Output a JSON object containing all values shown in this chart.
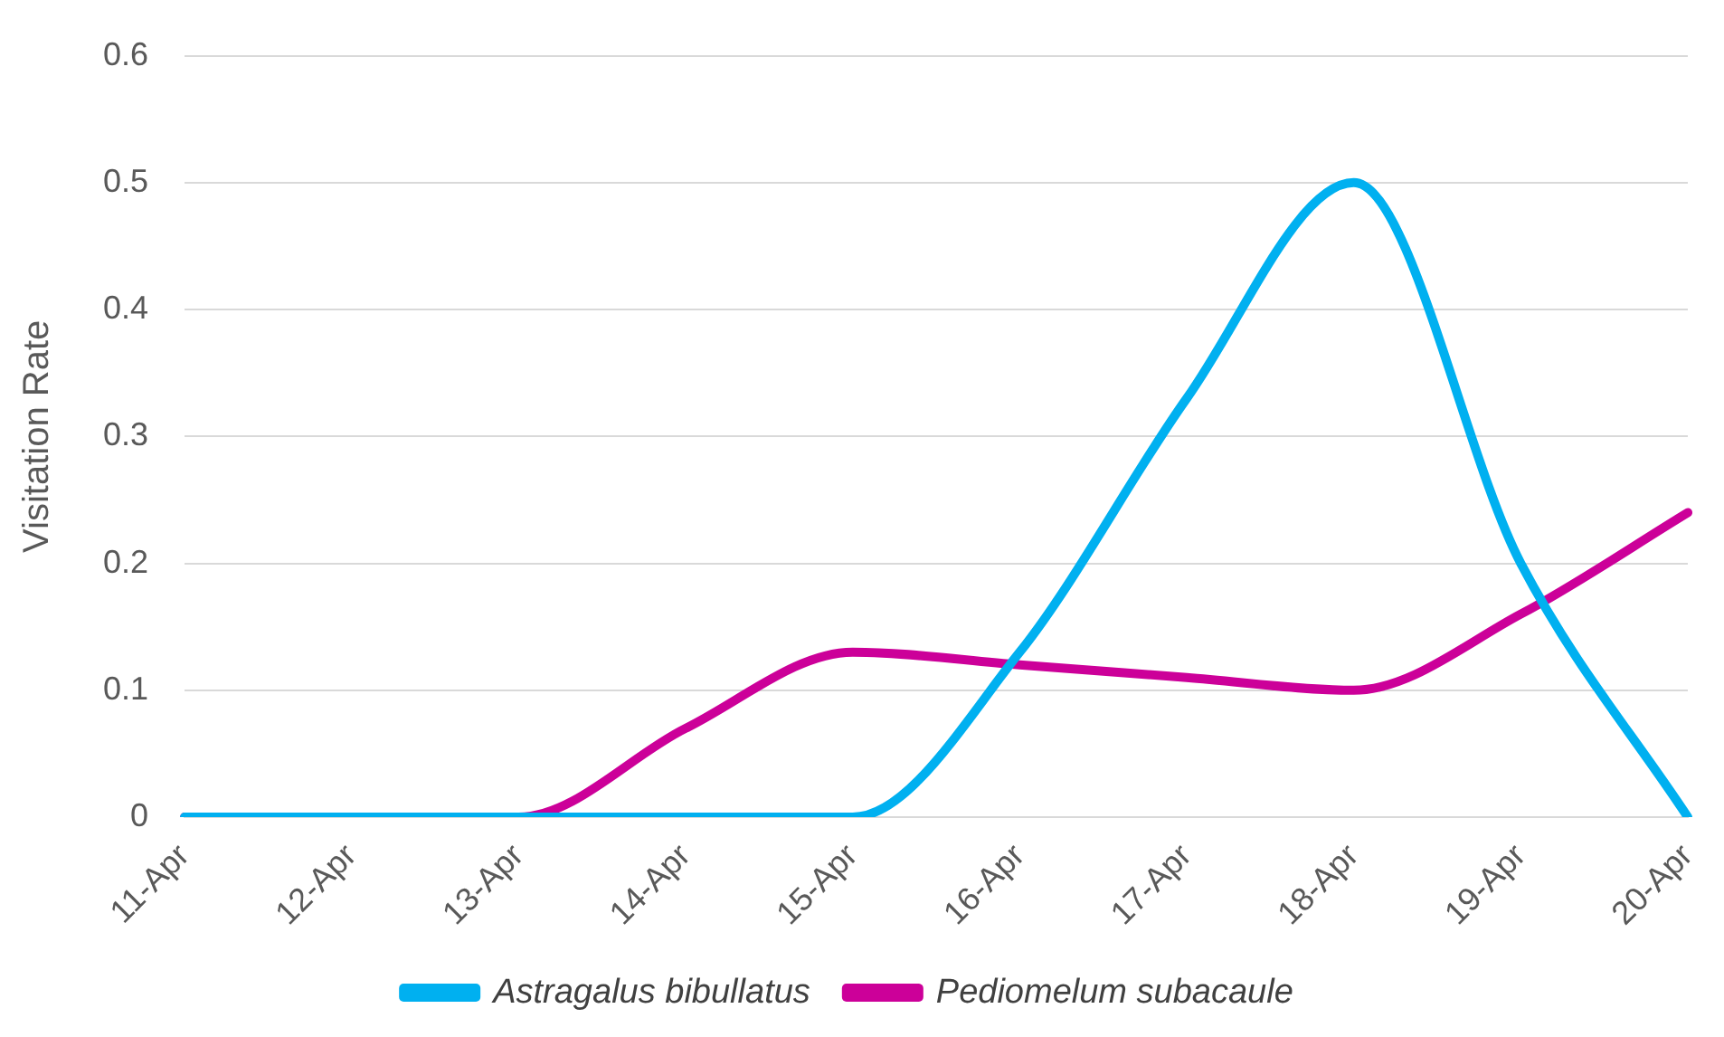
{
  "chart_data": {
    "type": "line",
    "ylabel": "Visitation Rate",
    "categories": [
      "11-Apr",
      "12-Apr",
      "13-Apr",
      "14-Apr",
      "15-Apr",
      "16-Apr",
      "17-Apr",
      "18-Apr",
      "19-Apr",
      "20-Apr"
    ],
    "series": [
      {
        "name": "Astragalus bibullatus",
        "color": "#00b0f0",
        "values": [
          0,
          0,
          0,
          0,
          0,
          0.13,
          0.33,
          0.5,
          0.2,
          0
        ]
      },
      {
        "name": "Pediomelum subacaule",
        "color": "#cc0099",
        "values": [
          0,
          0,
          0,
          0.07,
          0.13,
          0.12,
          0.11,
          0.1,
          0.16,
          0.24
        ]
      }
    ],
    "ylim": [
      0,
      0.6
    ],
    "yticks": [
      0,
      0.1,
      0.2,
      0.3,
      0.4,
      0.5,
      0.6
    ],
    "grid": "y",
    "legend": "bottom",
    "marker": "none",
    "line_style": "solid"
  }
}
